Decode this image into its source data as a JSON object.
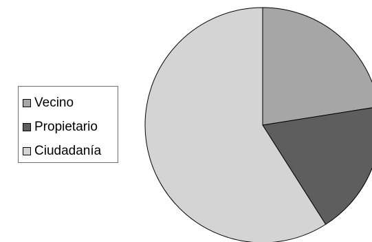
{
  "chart_data": {
    "type": "pie",
    "title": "",
    "categories": [
      "Vecino",
      "Propietario",
      "Ciudadanía"
    ],
    "values": [
      22.5,
      18.5,
      59.0
    ],
    "colors": [
      "#a6a6a6",
      "#5e5e5e",
      "#d4d4d4"
    ],
    "start_angle_deg": 0,
    "direction": "clockwise",
    "legend_position": "left"
  }
}
